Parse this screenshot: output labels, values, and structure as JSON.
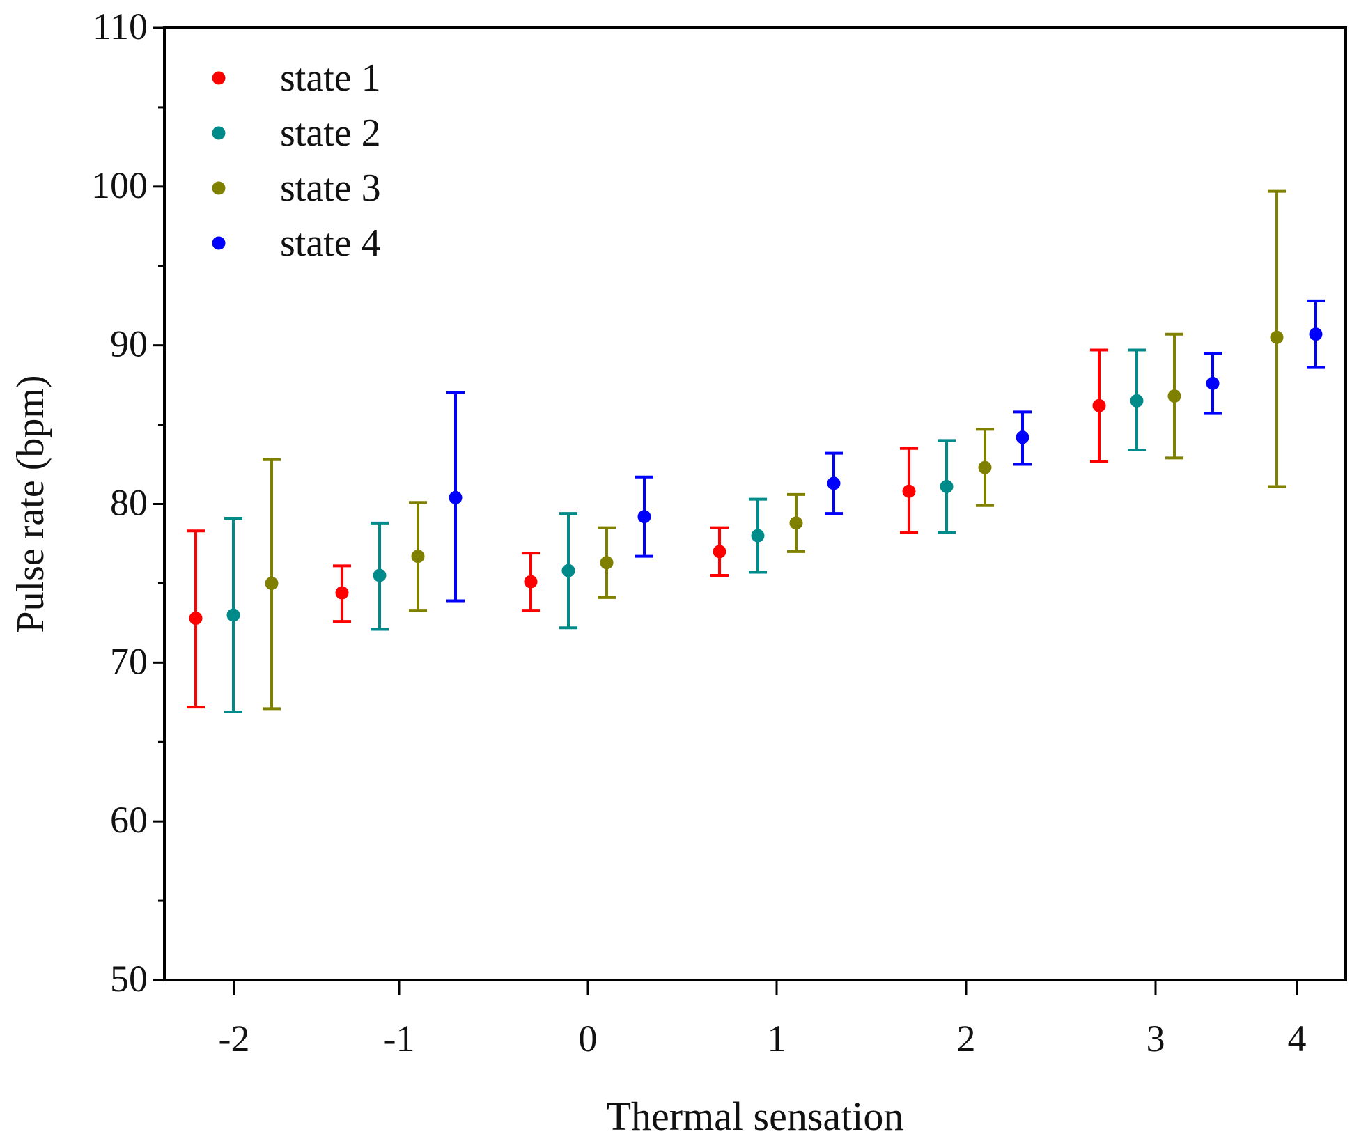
{
  "chart_data": {
    "type": "scatter",
    "title": "",
    "xlabel": "Thermal sensation",
    "ylabel": "Pulse rate (bpm)",
    "ylim": [
      50,
      110
    ],
    "yticks": [
      50,
      60,
      70,
      80,
      90,
      100,
      110
    ],
    "x_categories": [
      "-2",
      "-1",
      "0",
      "1",
      "2",
      "3",
      "4"
    ],
    "legend_position": "top-left",
    "series": [
      {
        "name": "state 1",
        "color": "#ff0000",
        "points": [
          {
            "x": "-2",
            "y": 72.8,
            "low": 67.2,
            "high": 78.3
          },
          {
            "x": "-1",
            "y": 74.4,
            "low": 72.6,
            "high": 76.1
          },
          {
            "x": "0",
            "y": 75.1,
            "low": 73.3,
            "high": 76.9
          },
          {
            "x": "1",
            "y": 77.0,
            "low": 75.5,
            "high": 78.5
          },
          {
            "x": "2",
            "y": 80.8,
            "low": 78.2,
            "high": 83.5
          },
          {
            "x": "3",
            "y": 86.2,
            "low": 82.7,
            "high": 89.7
          }
        ]
      },
      {
        "name": "state 2",
        "color": "#008b8b",
        "points": [
          {
            "x": "-2",
            "y": 73.0,
            "low": 66.9,
            "high": 79.1
          },
          {
            "x": "-1",
            "y": 75.5,
            "low": 72.1,
            "high": 78.8
          },
          {
            "x": "0",
            "y": 75.8,
            "low": 72.2,
            "high": 79.4
          },
          {
            "x": "1",
            "y": 78.0,
            "low": 75.7,
            "high": 80.3
          },
          {
            "x": "2",
            "y": 81.1,
            "low": 78.2,
            "high": 84.0
          },
          {
            "x": "3",
            "y": 86.5,
            "low": 83.4,
            "high": 89.7
          }
        ]
      },
      {
        "name": "state 3",
        "color": "#808000",
        "points": [
          {
            "x": "-2",
            "y": 75.0,
            "low": 67.1,
            "high": 82.8
          },
          {
            "x": "-1",
            "y": 76.7,
            "low": 73.3,
            "high": 80.1
          },
          {
            "x": "0",
            "y": 76.3,
            "low": 74.1,
            "high": 78.5
          },
          {
            "x": "1",
            "y": 78.8,
            "low": 77.0,
            "high": 80.6
          },
          {
            "x": "2",
            "y": 82.3,
            "low": 79.9,
            "high": 84.7
          },
          {
            "x": "3",
            "y": 86.8,
            "low": 82.9,
            "high": 90.7
          },
          {
            "x": "4",
            "y": 90.5,
            "low": 81.1,
            "high": 99.7
          }
        ]
      },
      {
        "name": "state 4",
        "color": "#0000ff",
        "points": [
          {
            "x": "-1",
            "y": 80.4,
            "low": 73.9,
            "high": 87.0
          },
          {
            "x": "0",
            "y": 79.2,
            "low": 76.7,
            "high": 81.7
          },
          {
            "x": "1",
            "y": 81.3,
            "low": 79.4,
            "high": 83.2
          },
          {
            "x": "2",
            "y": 84.2,
            "low": 82.5,
            "high": 85.8
          },
          {
            "x": "3",
            "y": 87.6,
            "low": 85.7,
            "high": 89.5
          },
          {
            "x": "4",
            "y": 90.7,
            "low": 88.6,
            "high": 92.8
          }
        ]
      }
    ]
  }
}
